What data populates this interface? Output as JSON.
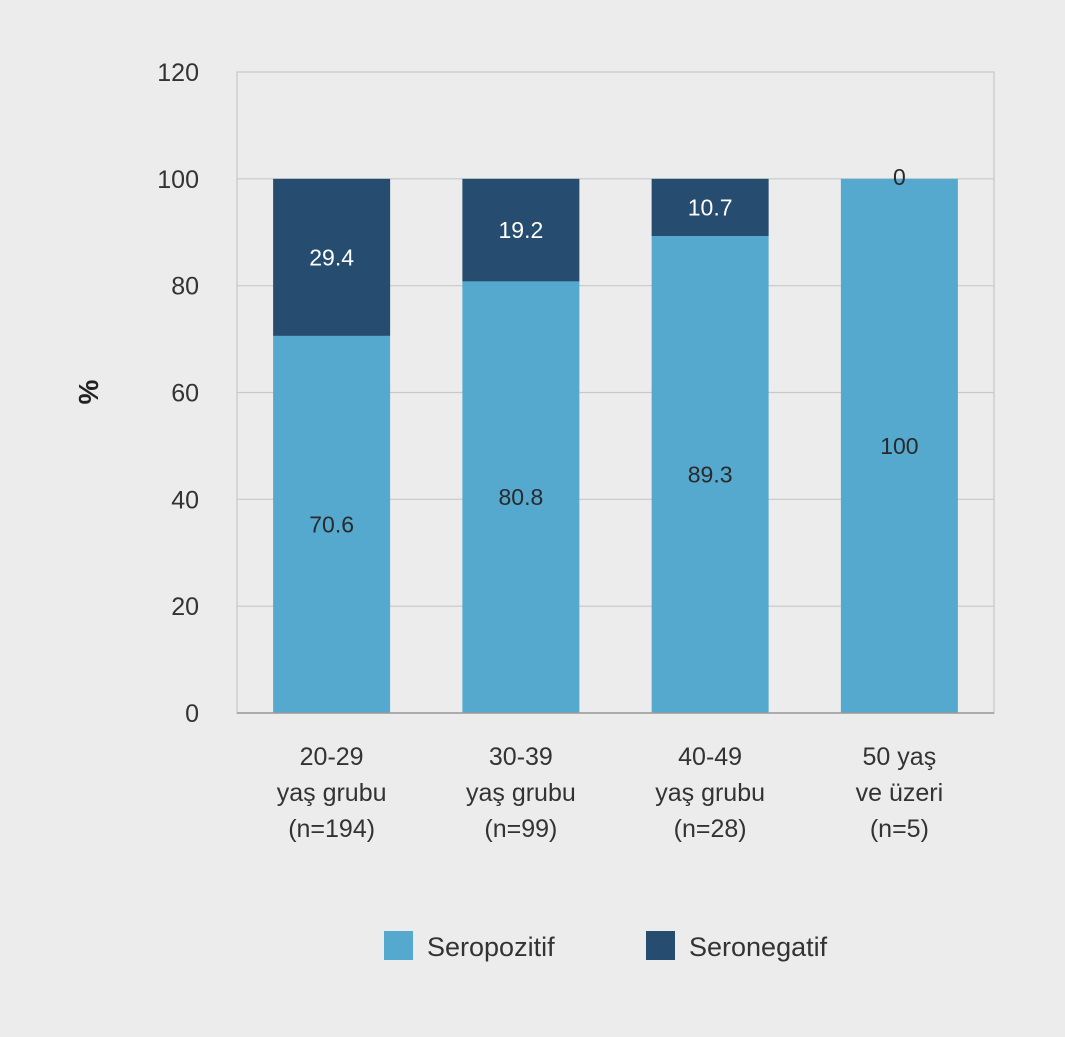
{
  "chart_data": {
    "type": "bar",
    "stacked": true,
    "categories": [
      [
        "20-29",
        "yaş grubu",
        "(n=194)"
      ],
      [
        "30-39",
        "yaş grubu",
        "(n=99)"
      ],
      [
        "40-49",
        "yaş grubu",
        "(n=28)"
      ],
      [
        "50 yaş",
        "ve üzeri",
        "(n=5)"
      ]
    ],
    "series": [
      {
        "name": "Seropozitif",
        "values": [
          70.6,
          80.8,
          89.3,
          100
        ],
        "labels": [
          "70.6",
          "80.8",
          "89.3",
          "100"
        ],
        "color": "#55a8ce",
        "label_color": "#2a2a2a"
      },
      {
        "name": "Seronegatif",
        "values": [
          29.4,
          19.2,
          10.7,
          0
        ],
        "labels": [
          "29.4",
          "19.2",
          "10.7",
          "0"
        ],
        "color": "#264c6f",
        "label_color": "#ffffff"
      }
    ],
    "ylabel": "%",
    "xlabel": "",
    "title": "",
    "ylim": [
      0,
      120
    ],
    "yticks": [
      0,
      20,
      40,
      60,
      80,
      100,
      120
    ],
    "ytick_labels": [
      "0",
      "20",
      "40",
      "60",
      "80",
      "100",
      "120"
    ],
    "grid": true,
    "legend_position": "bottom-center"
  },
  "colors": {
    "background": "#ececec",
    "plot_background": "#ececec",
    "grid": "#c8c8c8",
    "axis": "#9a9a9a"
  }
}
